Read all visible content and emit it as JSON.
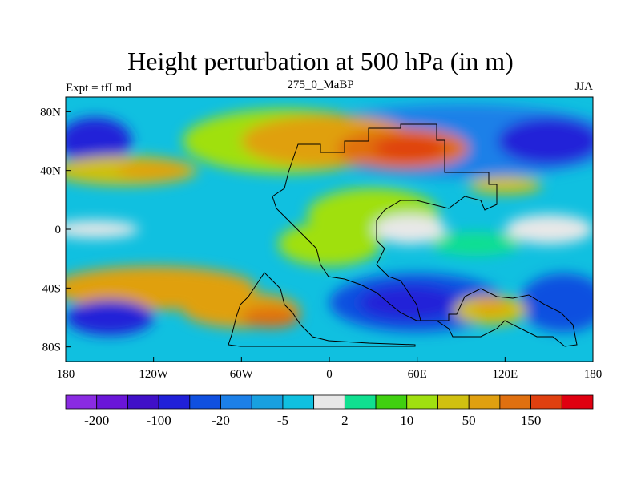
{
  "chart_data": {
    "type": "heatmap",
    "title": "Height perturbation at 500 hPa (in m)",
    "subtitle_left": "Expt = tfLmd",
    "subtitle_center": "275_0_MaBP",
    "subtitle_right": "JJA",
    "xlim": [
      -180,
      180
    ],
    "ylim": [
      -90,
      90
    ],
    "x_ticks": [
      {
        "value": -180,
        "label": "180"
      },
      {
        "value": -120,
        "label": "120W"
      },
      {
        "value": -60,
        "label": "60W"
      },
      {
        "value": 0,
        "label": "0"
      },
      {
        "value": 60,
        "label": "60E"
      },
      {
        "value": 120,
        "label": "120E"
      },
      {
        "value": 180,
        "label": "180"
      }
    ],
    "y_ticks": [
      {
        "value": 80,
        "label": "80N"
      },
      {
        "value": 40,
        "label": "40N"
      },
      {
        "value": 0,
        "label": "0"
      },
      {
        "value": -40,
        "label": "40S"
      },
      {
        "value": -80,
        "label": "80S"
      }
    ],
    "colorbar": {
      "colors": [
        "#8a2be2",
        "#6a16d8",
        "#4010c8",
        "#2020d8",
        "#1050e0",
        "#1c80e8",
        "#18a0e0",
        "#10c0e0",
        "#e8e8e8",
        "#10e090",
        "#40d010",
        "#a0e010",
        "#d0c010",
        "#e0a010",
        "#e07010",
        "#e04010",
        "#e00010"
      ],
      "labels": [
        {
          "boundary": 1,
          "text": "-200"
        },
        {
          "boundary": 3,
          "text": "-100"
        },
        {
          "boundary": 5,
          "text": "-20"
        },
        {
          "boundary": 7,
          "text": "-5"
        },
        {
          "boundary": 9,
          "text": "2"
        },
        {
          "boundary": 11,
          "text": "10"
        },
        {
          "boundary": 13,
          "text": "50"
        },
        {
          "boundary": 15,
          "text": "150"
        }
      ]
    },
    "field_blobs": [
      {
        "lon": 90,
        "lat": 60,
        "rx": 110,
        "ry": 25,
        "color": "#1c80e8"
      },
      {
        "lon": -30,
        "lat": 60,
        "rx": 70,
        "ry": 22,
        "color": "#a0e010"
      },
      {
        "lon": 0,
        "lat": 60,
        "rx": 60,
        "ry": 18,
        "color": "#e0a010"
      },
      {
        "lon": 50,
        "lat": 55,
        "rx": 45,
        "ry": 14,
        "color": "#e07010"
      },
      {
        "lon": 55,
        "lat": 55,
        "rx": 25,
        "ry": 8,
        "color": "#e04010"
      },
      {
        "lon": 150,
        "lat": 60,
        "rx": 35,
        "ry": 16,
        "color": "#2020d8"
      },
      {
        "lon": -160,
        "lat": 60,
        "rx": 25,
        "ry": 16,
        "color": "#2020d8"
      },
      {
        "lon": -140,
        "lat": 40,
        "rx": 50,
        "ry": 10,
        "color": "#d0c010"
      },
      {
        "lon": -120,
        "lat": 40,
        "rx": 25,
        "ry": 6,
        "color": "#e0a010"
      },
      {
        "lon": 120,
        "lat": 30,
        "rx": 25,
        "ry": 6,
        "color": "#d0c010"
      },
      {
        "lon": 30,
        "lat": 10,
        "rx": 45,
        "ry": 18,
        "color": "#a0e010"
      },
      {
        "lon": 0,
        "lat": -10,
        "rx": 35,
        "ry": 15,
        "color": "#a0e010"
      },
      {
        "lon": 55,
        "lat": 0,
        "rx": 25,
        "ry": 10,
        "color": "#e8e8e8"
      },
      {
        "lon": 100,
        "lat": -10,
        "rx": 30,
        "ry": 8,
        "color": "#10e090"
      },
      {
        "lon": 150,
        "lat": 0,
        "rx": 30,
        "ry": 10,
        "color": "#e8e8e8"
      },
      {
        "lon": -160,
        "lat": 0,
        "rx": 30,
        "ry": 6,
        "color": "#e8e8e8"
      },
      {
        "lon": -120,
        "lat": -40,
        "rx": 70,
        "ry": 15,
        "color": "#e0a010"
      },
      {
        "lon": -60,
        "lat": -55,
        "rx": 40,
        "ry": 12,
        "color": "#e0a010"
      },
      {
        "lon": -40,
        "lat": -60,
        "rx": 20,
        "ry": 7,
        "color": "#e07010"
      },
      {
        "lon": -150,
        "lat": -60,
        "rx": 30,
        "ry": 12,
        "color": "#2020d8"
      },
      {
        "lon": 60,
        "lat": -50,
        "rx": 60,
        "ry": 20,
        "color": "#1050e0"
      },
      {
        "lon": 55,
        "lat": -50,
        "rx": 35,
        "ry": 12,
        "color": "#2020d8"
      },
      {
        "lon": 160,
        "lat": -50,
        "rx": 30,
        "ry": 20,
        "color": "#1050e0"
      },
      {
        "lon": 110,
        "lat": -55,
        "rx": 25,
        "ry": 10,
        "color": "#d0c010"
      },
      {
        "lon": 110,
        "lat": -52,
        "rx": 12,
        "ry": 5,
        "color": "#e0a010"
      }
    ]
  }
}
